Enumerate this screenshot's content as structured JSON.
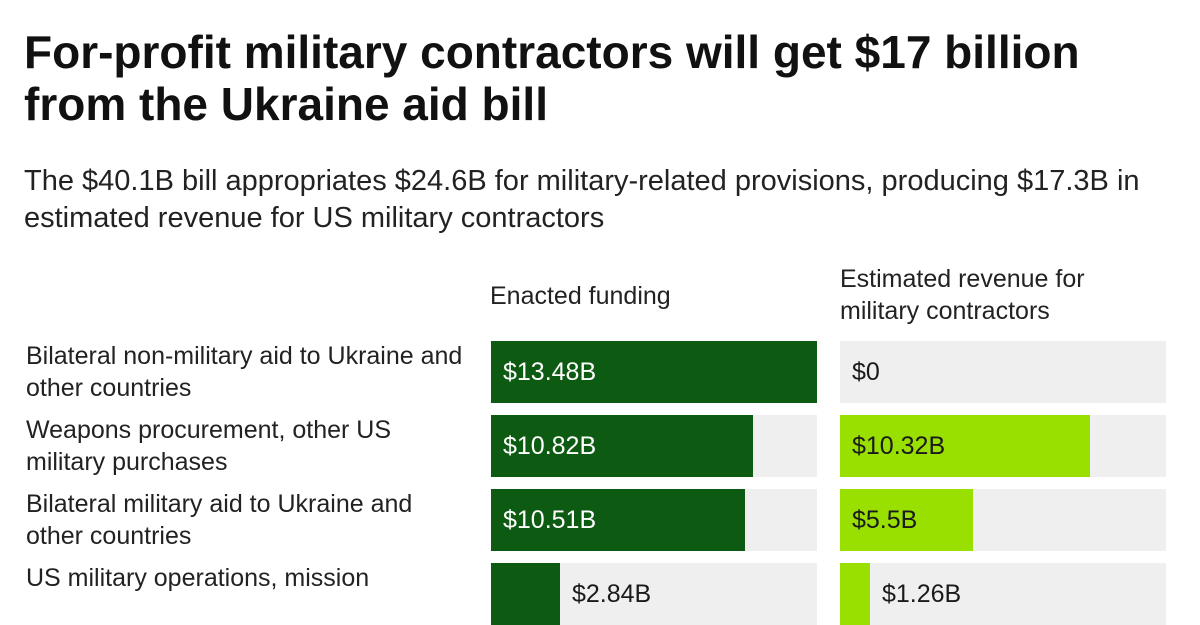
{
  "title": "For-profit military contractors will get $17 billion from the Ukraine aid bill",
  "subtitle": "The $40.1B bill appropriates $24.6B for military-related provisions, producing $17.3B in estimated revenue for US military contractors",
  "colors": {
    "funding_bar": "#0d5a12",
    "revenue_bar": "#99e000",
    "track": "#efefef"
  },
  "chart_data": {
    "type": "bar",
    "orientation": "horizontal",
    "grid": false,
    "columns": [
      "Enacted funding",
      "Estimated revenue for military contractors"
    ],
    "categories": [
      "Bilateral non-military aid to Ukraine and other countries",
      "Weapons procurement, other US military purchases",
      "Bilateral military aid to Ukraine and other countries",
      "US military operations, mission"
    ],
    "series": [
      {
        "name": "Enacted funding",
        "values": [
          13.48,
          10.82,
          10.51,
          2.84
        ],
        "labels": [
          "$13.48B",
          "$10.82B",
          "$10.51B",
          "$2.84B"
        ]
      },
      {
        "name": "Estimated revenue for military contractors",
        "values": [
          0,
          10.32,
          5.5,
          1.26
        ],
        "labels": [
          "$0",
          "$10.32B",
          "$5.5B",
          "$1.26B"
        ]
      }
    ],
    "xlim": [
      0,
      13.48
    ]
  }
}
